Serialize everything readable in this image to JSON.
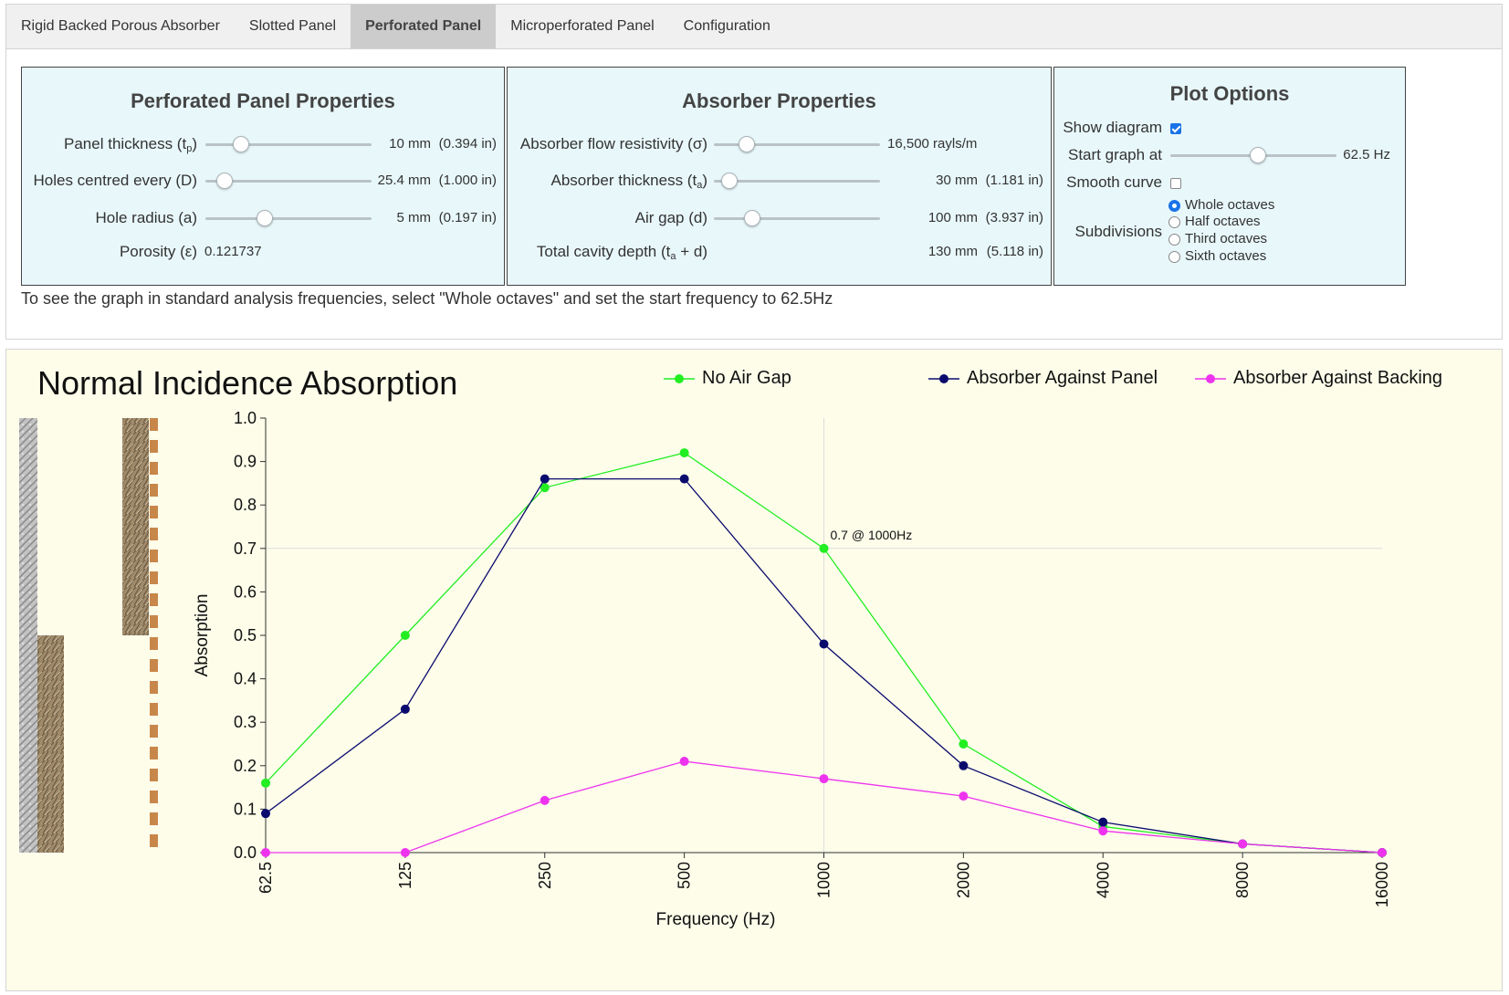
{
  "tabs": [
    {
      "label": "Rigid Backed Porous Absorber",
      "active": false
    },
    {
      "label": "Slotted Panel",
      "active": false
    },
    {
      "label": "Perforated Panel",
      "active": true
    },
    {
      "label": "Microperforated Panel",
      "active": false
    },
    {
      "label": "Configuration",
      "active": false
    }
  ],
  "panel_props": {
    "title": "Perforated Panel Properties",
    "thickness": {
      "label": "Panel thickness (t",
      "sub": "p",
      "close": ")",
      "value": "10 mm",
      "alt": "(0.394 in)"
    },
    "holes": {
      "label": "Holes centred every (D)",
      "value": "25.4 mm",
      "alt": "(1.000 in)"
    },
    "radius": {
      "label": "Hole radius (a)",
      "value": "5 mm",
      "alt": "(0.197 in)"
    },
    "porosity": {
      "label": "Porosity (ε)",
      "value": "0.121737"
    }
  },
  "absorber_props": {
    "title": "Absorber Properties",
    "resistivity": {
      "label": "Absorber flow resistivity (σ)",
      "value": "16,500 rayls/m"
    },
    "thickness": {
      "label": "Absorber thickness (t",
      "sub": "a",
      "close": ")",
      "value": "30 mm",
      "alt": "(1.181 in)"
    },
    "airgap": {
      "label": "Air gap (d)",
      "value": "100 mm",
      "alt": "(3.937 in)"
    },
    "cavity": {
      "label": "Total cavity depth (t",
      "sub": "a",
      "close": " + d)",
      "value": "130 mm",
      "alt": "(5.118 in)"
    }
  },
  "plot_options": {
    "title": "Plot Options",
    "show_diagram": {
      "label": "Show diagram",
      "checked": true
    },
    "start_graph": {
      "label": "Start graph at",
      "value": "62.5 Hz"
    },
    "smooth_curve": {
      "label": "Smooth curve",
      "checked": false
    },
    "subdivisions": {
      "label": "Subdivisions",
      "options": [
        "Whole octaves",
        "Half octaves",
        "Third octaves",
        "Sixth octaves"
      ],
      "selected": "Whole octaves"
    }
  },
  "hint": "To see the graph in standard analysis frequencies, select \"Whole octaves\" and set the start frequency to 62.5Hz",
  "colors": {
    "no_air_gap": "#22ee22",
    "against_panel": "#0b0b6e",
    "against_backing": "#ee33ee",
    "panel_bg": "#e8f7fa",
    "chart_bg": "#fdfdea",
    "accent": "#1a73e8"
  },
  "chart_data": {
    "type": "line",
    "title": "Normal Incidence Absorption",
    "xlabel": "Frequency (Hz)",
    "ylabel": "Absorption",
    "categories": [
      "62.5",
      "125",
      "250",
      "500",
      "1000",
      "2000",
      "4000",
      "8000",
      "16000"
    ],
    "yticks": [
      "0.0",
      "0.1",
      "0.2",
      "0.3",
      "0.4",
      "0.5",
      "0.6",
      "0.7",
      "0.8",
      "0.9",
      "1.0"
    ],
    "ylim": [
      0,
      1
    ],
    "legend_position": "top",
    "series": [
      {
        "name": "No Air Gap",
        "color": "#22ee22",
        "values": [
          0.16,
          0.5,
          0.84,
          0.92,
          0.7,
          0.25,
          0.06,
          0.02,
          0.0
        ]
      },
      {
        "name": "Absorber Against Panel",
        "color": "#0b0b6e",
        "values": [
          0.09,
          0.33,
          0.86,
          0.86,
          0.48,
          0.2,
          0.07,
          0.02,
          0.0
        ]
      },
      {
        "name": "Absorber Against Backing",
        "color": "#ee33ee",
        "values": [
          0.0,
          0.0,
          0.12,
          0.21,
          0.17,
          0.13,
          0.05,
          0.02,
          0.0
        ]
      }
    ],
    "crosshair": {
      "x": "1000",
      "y": 0.7,
      "label": "0.7 @ 1000Hz"
    }
  }
}
